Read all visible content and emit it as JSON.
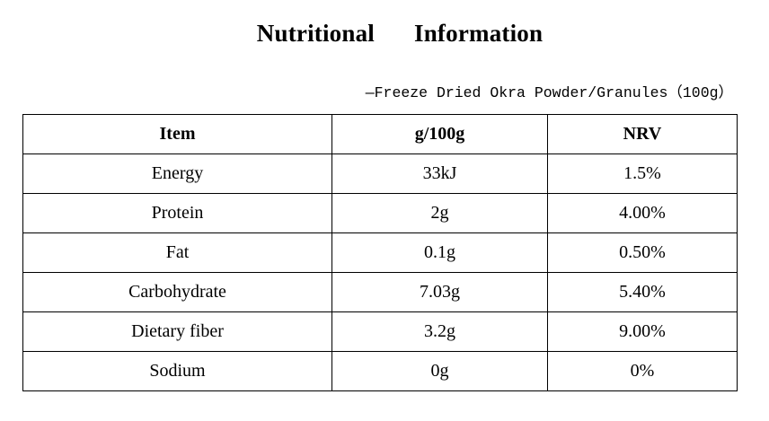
{
  "title": {
    "part1": "Nutritional",
    "part2": "Information"
  },
  "subtitle": "—Freeze Dried Okra Powder/Granules（100g）",
  "table": {
    "headers": [
      "Item",
      "g/100g",
      "NRV"
    ],
    "rows": [
      [
        "Energy",
        "33kJ",
        "1.5%"
      ],
      [
        "Protein",
        "2g",
        "4.00%"
      ],
      [
        "Fat",
        "0.1g",
        "0.50%"
      ],
      [
        "Carbohydrate",
        "7.03g",
        "5.40%"
      ],
      [
        "Dietary fiber",
        "3.2g",
        "9.00%"
      ],
      [
        "Sodium",
        "0g",
        "0%"
      ]
    ]
  }
}
